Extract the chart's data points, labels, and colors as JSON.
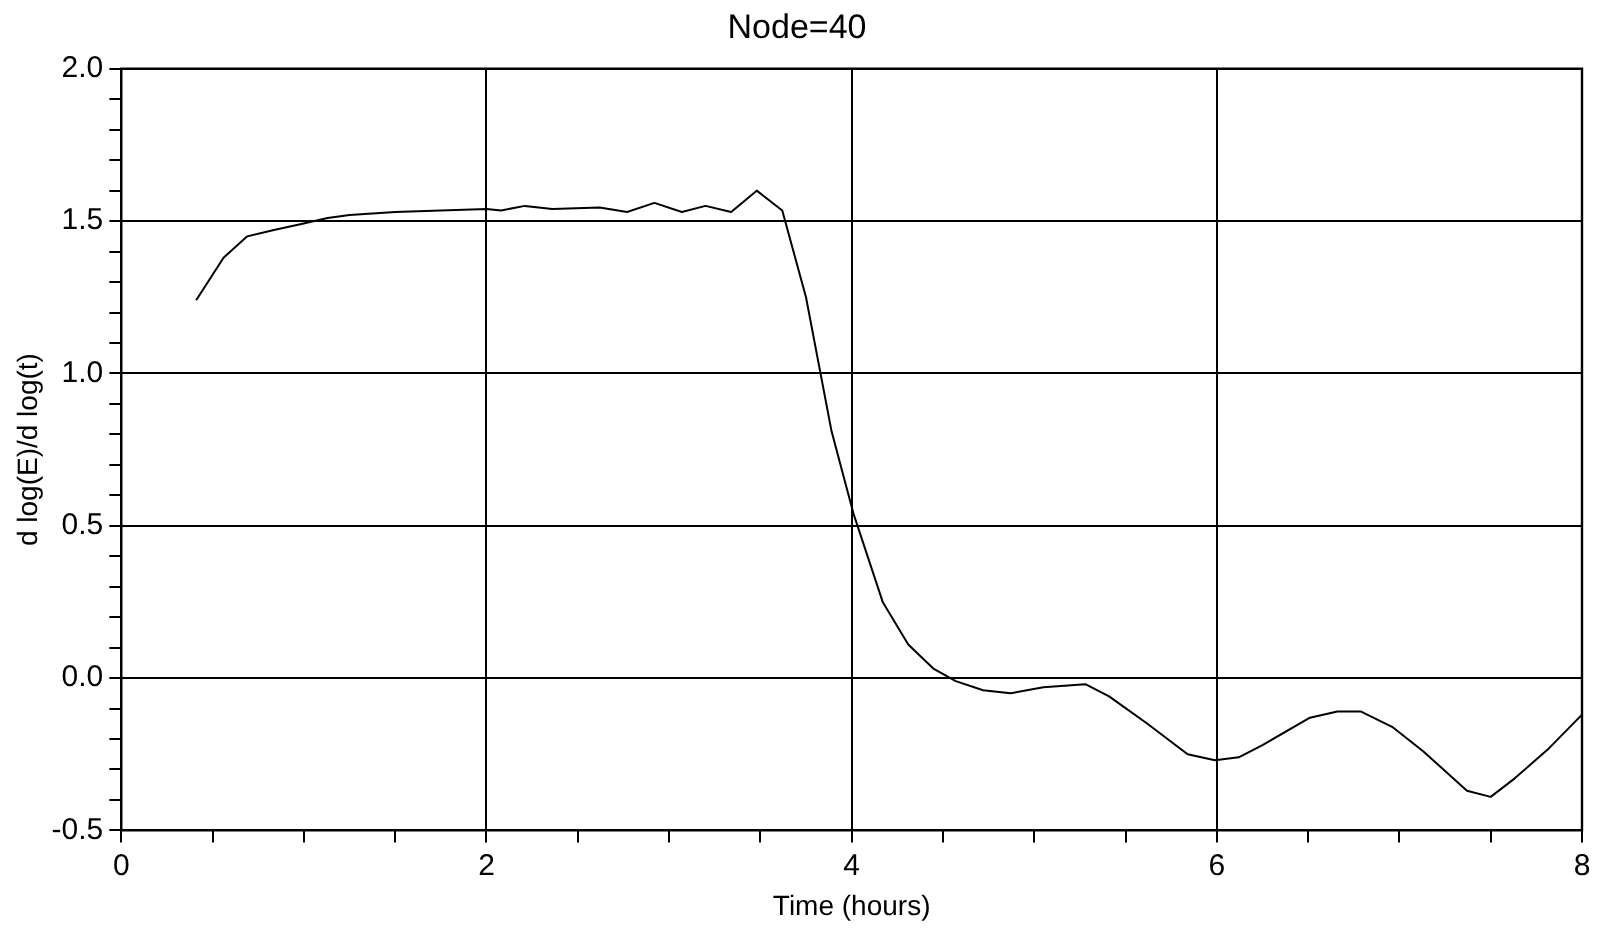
{
  "chart_data": {
    "type": "line",
    "title": "Node=40",
    "xlabel": "Time (hours)",
    "ylabel": "d log(E)/d log(t)",
    "x": [
      0.41,
      0.56,
      0.69,
      0.83,
      0.98,
      1.13,
      1.25,
      1.5,
      2.0,
      2.08,
      2.21,
      2.36,
      2.62,
      2.77,
      2.92,
      3.07,
      3.2,
      3.34,
      3.48,
      3.62,
      3.75,
      3.89,
      4.01,
      4.17,
      4.31,
      4.45,
      4.57,
      4.72,
      4.87,
      5.05,
      5.28,
      5.41,
      5.62,
      5.84,
      5.99,
      6.12,
      6.25,
      6.51,
      6.66,
      6.79,
      6.96,
      7.13,
      7.37,
      7.5,
      7.63,
      7.82,
      8.0
    ],
    "series": [
      {
        "color": "#000000",
        "values": [
          1.24,
          1.38,
          1.45,
          1.47,
          1.49,
          1.51,
          1.52,
          1.53,
          1.54,
          1.535,
          1.55,
          1.54,
          1.545,
          1.53,
          1.56,
          1.53,
          1.55,
          1.53,
          1.6,
          1.535,
          1.25,
          0.81,
          0.54,
          0.25,
          0.11,
          0.03,
          -0.01,
          -0.04,
          -0.05,
          -0.03,
          -0.02,
          -0.06,
          -0.15,
          -0.25,
          -0.27,
          -0.26,
          -0.22,
          -0.13,
          -0.11,
          -0.11,
          -0.16,
          -0.24,
          -0.37,
          -0.39,
          -0.33,
          -0.23,
          -0.12
        ]
      }
    ],
    "xlim": [
      0,
      8
    ],
    "xticks": [
      0,
      {
        "value": 0.5,
        "label": null
      },
      {
        "value": 1,
        "label": null
      },
      {
        "value": 1.5,
        "label": null
      },
      2,
      {
        "value": 2.5,
        "label": null
      },
      {
        "value": 3,
        "label": null
      },
      {
        "value": 3.5,
        "label": null
      },
      4,
      {
        "value": 4.5,
        "label": null
      },
      {
        "value": 5,
        "label": null
      },
      {
        "value": 5.5,
        "label": null
      },
      6,
      {
        "value": 6.5,
        "label": null
      },
      {
        "value": 7,
        "label": null
      },
      {
        "value": 7.5,
        "label": null
      },
      8
    ],
    "ylim": [
      -0.5,
      2.0
    ],
    "yticks": [
      {
        "value": -0.5,
        "label": "-0.5"
      },
      {
        "value": -0.4,
        "label": null
      },
      {
        "value": -0.3,
        "label": null
      },
      {
        "value": -0.2,
        "label": null
      },
      {
        "value": -0.1,
        "label": null
      },
      {
        "value": 0,
        "label": "0.0"
      },
      {
        "value": 0.1,
        "label": null
      },
      {
        "value": 0.2,
        "label": null
      },
      {
        "value": 0.3,
        "label": null
      },
      {
        "value": 0.4,
        "label": null
      },
      {
        "value": 0.5,
        "label": "0.5"
      },
      {
        "value": 0.6,
        "label": null
      },
      {
        "value": 0.7,
        "label": null
      },
      {
        "value": 0.8,
        "label": null
      },
      {
        "value": 0.9,
        "label": null
      },
      {
        "value": 1,
        "label": "1.0"
      },
      {
        "value": 1.1,
        "label": null
      },
      {
        "value": 1.2,
        "label": null
      },
      {
        "value": 1.3,
        "label": null
      },
      {
        "value": 1.4,
        "label": null
      },
      {
        "value": 1.5,
        "label": "1.5"
      },
      {
        "value": 1.6,
        "label": null
      },
      {
        "value": 1.7,
        "label": null
      },
      {
        "value": 1.8,
        "label": null
      },
      {
        "value": 1.9,
        "label": null
      },
      {
        "value": 2,
        "label": "2.0"
      }
    ],
    "grid": true,
    "legend": false,
    "marker": "none",
    "line_style": "solid"
  }
}
